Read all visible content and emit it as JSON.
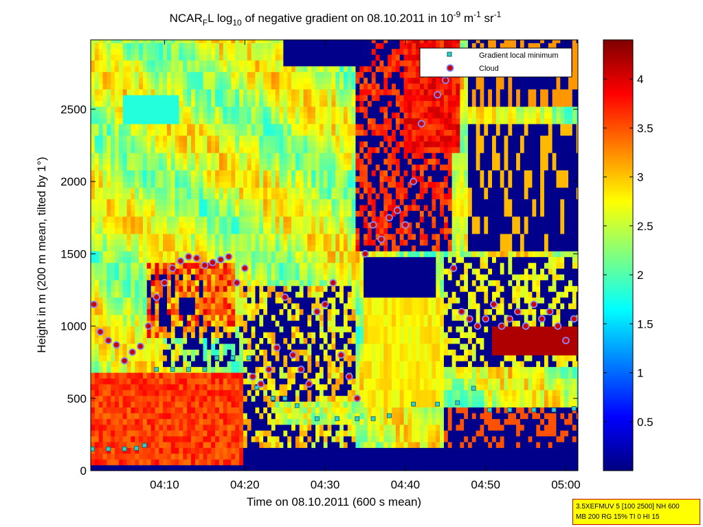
{
  "chart_data": {
    "type": "heatmap",
    "title_parts": {
      "t1": "NCAR",
      "t1_sub": "F",
      "t2": "L log",
      "t2_sub": "10",
      "t3": " of negative gradient on 08.10.2011 in 10",
      "t3_sup": "-9",
      "t4": " m",
      "t4_sup": "-1",
      "t5": " sr",
      "t5_sup": "-1"
    },
    "xlabel": "Time on 08.10.2011 (600 s mean)",
    "ylabel": "Height in m (200 m mean, tilted by 1°)",
    "x_ticks": [
      "04:10",
      "04:20",
      "04:30",
      "04:40",
      "04:50",
      "05:00"
    ],
    "x_tick_minutes": [
      10,
      20,
      30,
      40,
      50,
      60
    ],
    "xlim_minutes": [
      0.8,
      61.5
    ],
    "y_ticks": [
      "0",
      "500",
      "1000",
      "1500",
      "2000",
      "2500"
    ],
    "y_tick_values": [
      0,
      500,
      1000,
      1500,
      2000,
      2500
    ],
    "ylim": [
      0,
      2980
    ],
    "colorbar": {
      "ticks": [
        "0.5",
        "1",
        "1.5",
        "2",
        "2.5",
        "3",
        "3.5",
        "4"
      ],
      "tick_values": [
        0.5,
        1,
        1.5,
        2,
        2.5,
        3,
        3.5,
        4
      ],
      "clim": [
        0,
        4.4
      ],
      "colormap": "jet"
    },
    "legend": {
      "position": "top-right",
      "entries": [
        {
          "label": "Gradient local minimum",
          "marker": "square",
          "color": "#33cccc"
        },
        {
          "label": "Cloud",
          "marker": "circle",
          "color": "#cc0000"
        }
      ]
    },
    "series": [
      {
        "name": "Gradient local minimum",
        "x": [
          1.0,
          3.0,
          5.0,
          6.5,
          7.5,
          9.0,
          11.0,
          13.0,
          15.0,
          16.5,
          18.5,
          20.5,
          21.5,
          23.5,
          25.0,
          26.5,
          29.0,
          31.5,
          34.0,
          36.0,
          38.0,
          41.0,
          44.0,
          46.5,
          48.5,
          50.5,
          53.0,
          56.0,
          58.5,
          61.0
        ],
        "y": [
          150,
          150,
          150,
          155,
          175,
          700,
          700,
          700,
          700,
          780,
          780,
          780,
          575,
          500,
          500,
          450,
          360,
          360,
          360,
          360,
          380,
          460,
          460,
          470,
          570,
          420,
          420,
          420,
          420,
          430
        ]
      },
      {
        "name": "Cloud",
        "x": [
          1.2,
          2.0,
          3.0,
          4.0,
          5.0,
          6.0,
          7.0,
          8.0,
          9.0,
          10.0,
          11.0,
          12.0,
          13.0,
          14.0,
          15.0,
          16.0,
          17.0,
          18.0,
          19.0,
          20.0,
          21.0,
          22.0,
          23.0,
          24.0,
          25.0,
          26.0,
          27.0,
          28.0,
          29.0,
          30.0,
          31.0,
          32.0,
          33.0,
          34.0,
          35.0,
          36.0,
          37.0,
          38.0,
          39.0,
          40.0,
          41.0,
          42.0,
          43.0,
          44.0,
          45.0,
          46.0,
          47.0,
          48.0,
          49.0,
          50.0,
          51.0,
          52.0,
          53.0,
          54.0,
          55.0,
          56.0,
          57.0,
          58.0,
          59.0,
          60.0,
          61.0
        ],
        "y": [
          1150,
          960,
          900,
          870,
          760,
          820,
          860,
          1000,
          1200,
          1300,
          1400,
          1450,
          1480,
          1470,
          1420,
          1440,
          1460,
          1480,
          1300,
          1400,
          650,
          600,
          700,
          850,
          1200,
          800,
          700,
          600,
          1100,
          1150,
          1300,
          800,
          650,
          500,
          1500,
          1700,
          1600,
          1750,
          1800,
          1700,
          2000,
          2400,
          2800,
          2600,
          2700,
          1400,
          1100,
          1050,
          1000,
          1050,
          1150,
          1000,
          1050,
          1100,
          1000,
          1150,
          1050,
          1100,
          1000,
          900,
          1050
        ]
      }
    ]
  },
  "note": {
    "line1": "3.5XEFMUV 5 [100 2500] NH 600",
    "line2": "MB 200 RG 15% TI 0 HI 15"
  }
}
